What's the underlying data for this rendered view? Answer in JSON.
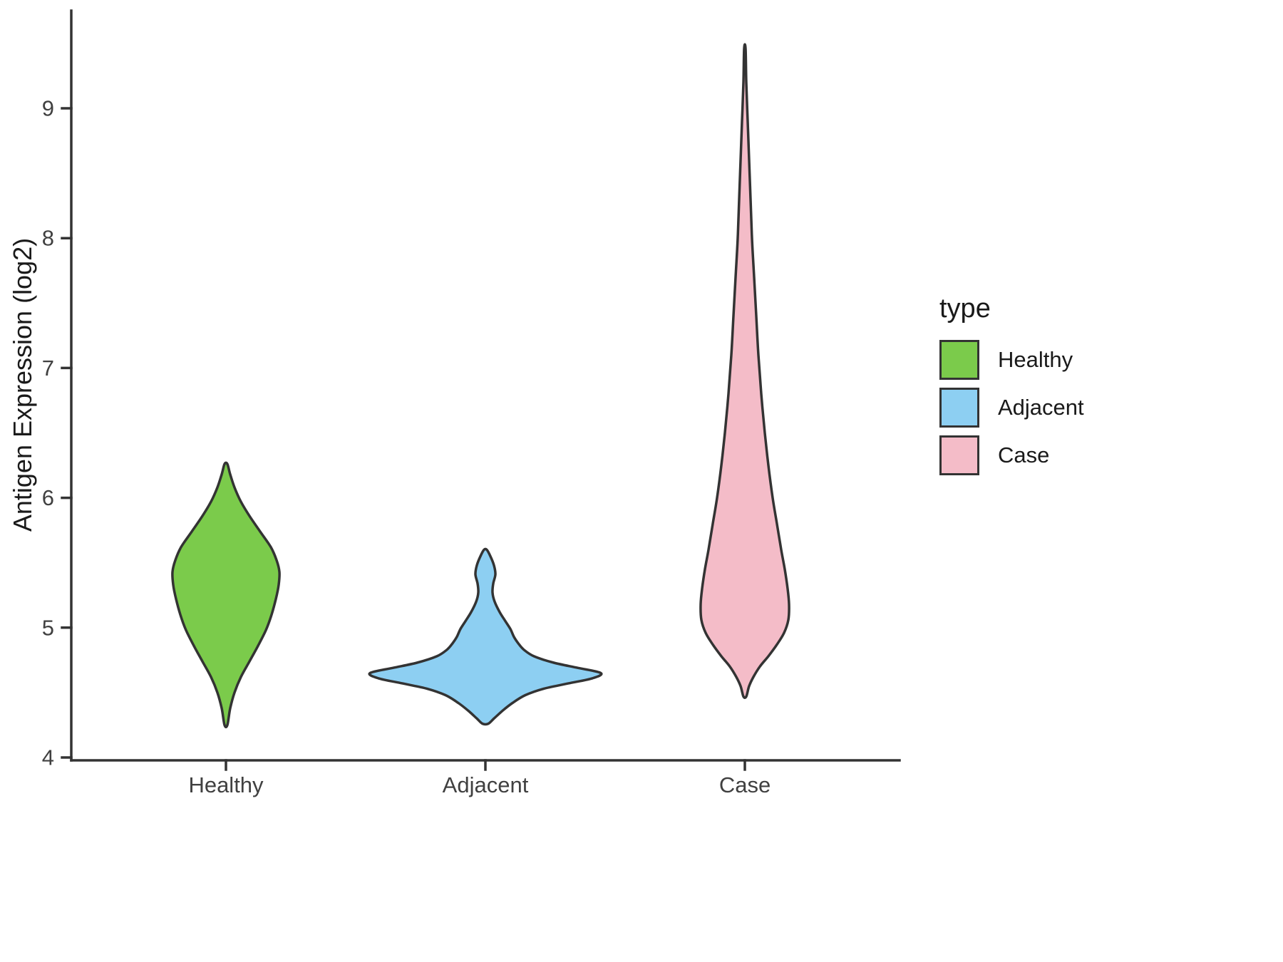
{
  "chart_data": {
    "type": "violin",
    "title": "",
    "xlabel": "",
    "ylabel": "Antigen Expression (log2)",
    "categories": [
      "Healthy",
      "Adjacent",
      "Case"
    ],
    "y_ticks": [
      4,
      5,
      6,
      7,
      8,
      9
    ],
    "y_range": [
      4,
      9.75
    ],
    "grid": false,
    "outline_color": "#333333",
    "axis_text_color": "#404040",
    "axis_title_color": "#1a1a1a",
    "legend": {
      "title": "type",
      "position": "right",
      "items": [
        {
          "label": "Healthy",
          "color": "#7BCB4B"
        },
        {
          "label": "Adjacent",
          "color": "#8DCFF2"
        },
        {
          "label": "Case",
          "color": "#F4BCC8"
        }
      ]
    },
    "density_units": "rows are [value_log2, halfwidth_px] read off the plot, top to bottom",
    "series": [
      {
        "name": "Healthy",
        "color": "#7BCB4B",
        "value_range": [
          4.25,
          6.26
        ],
        "peak_value": 5.43,
        "density_profile": [
          [
            6.26,
            2
          ],
          [
            6.18,
            6
          ],
          [
            6.08,
            12
          ],
          [
            5.97,
            21
          ],
          [
            5.86,
            33
          ],
          [
            5.74,
            48
          ],
          [
            5.62,
            63
          ],
          [
            5.52,
            71
          ],
          [
            5.43,
            75
          ],
          [
            5.33,
            74
          ],
          [
            5.22,
            70
          ],
          [
            5.1,
            64
          ],
          [
            4.98,
            56
          ],
          [
            4.86,
            45
          ],
          [
            4.74,
            33
          ],
          [
            4.62,
            21
          ],
          [
            4.5,
            12
          ],
          [
            4.38,
            6
          ],
          [
            4.25,
            2
          ]
        ]
      },
      {
        "name": "Adjacent",
        "color": "#8DCFF2",
        "value_range": [
          4.26,
          5.6
        ],
        "peak_value": 4.65,
        "density_profile": [
          [
            5.6,
            2
          ],
          [
            5.55,
            7
          ],
          [
            5.48,
            12
          ],
          [
            5.41,
            14
          ],
          [
            5.34,
            11
          ],
          [
            5.27,
            10
          ],
          [
            5.2,
            13
          ],
          [
            5.12,
            20
          ],
          [
            5.05,
            28
          ],
          [
            4.99,
            35
          ],
          [
            4.93,
            40
          ],
          [
            4.88,
            46
          ],
          [
            4.83,
            54
          ],
          [
            4.78,
            68
          ],
          [
            4.73,
            96
          ],
          [
            4.69,
            130
          ],
          [
            4.65,
            162
          ],
          [
            4.61,
            150
          ],
          [
            4.57,
            116
          ],
          [
            4.53,
            82
          ],
          [
            4.48,
            56
          ],
          [
            4.42,
            38
          ],
          [
            4.36,
            24
          ],
          [
            4.3,
            12
          ],
          [
            4.26,
            4
          ]
        ]
      },
      {
        "name": "Case",
        "color": "#F4BCC8",
        "value_range": [
          4.47,
          9.46
        ],
        "peak_value": 5.18,
        "density_profile": [
          [
            9.46,
            1
          ],
          [
            9.2,
            2
          ],
          [
            8.9,
            4
          ],
          [
            8.6,
            6
          ],
          [
            8.3,
            8
          ],
          [
            8.0,
            10
          ],
          [
            7.7,
            13
          ],
          [
            7.4,
            16
          ],
          [
            7.1,
            19
          ],
          [
            6.8,
            23
          ],
          [
            6.5,
            28
          ],
          [
            6.25,
            33
          ],
          [
            6.0,
            39
          ],
          [
            5.8,
            45
          ],
          [
            5.6,
            51
          ],
          [
            5.45,
            56
          ],
          [
            5.3,
            60
          ],
          [
            5.18,
            62
          ],
          [
            5.06,
            61
          ],
          [
            4.96,
            55
          ],
          [
            4.87,
            45
          ],
          [
            4.78,
            33
          ],
          [
            4.7,
            21
          ],
          [
            4.62,
            12
          ],
          [
            4.55,
            6
          ],
          [
            4.47,
            2
          ]
        ]
      }
    ]
  }
}
